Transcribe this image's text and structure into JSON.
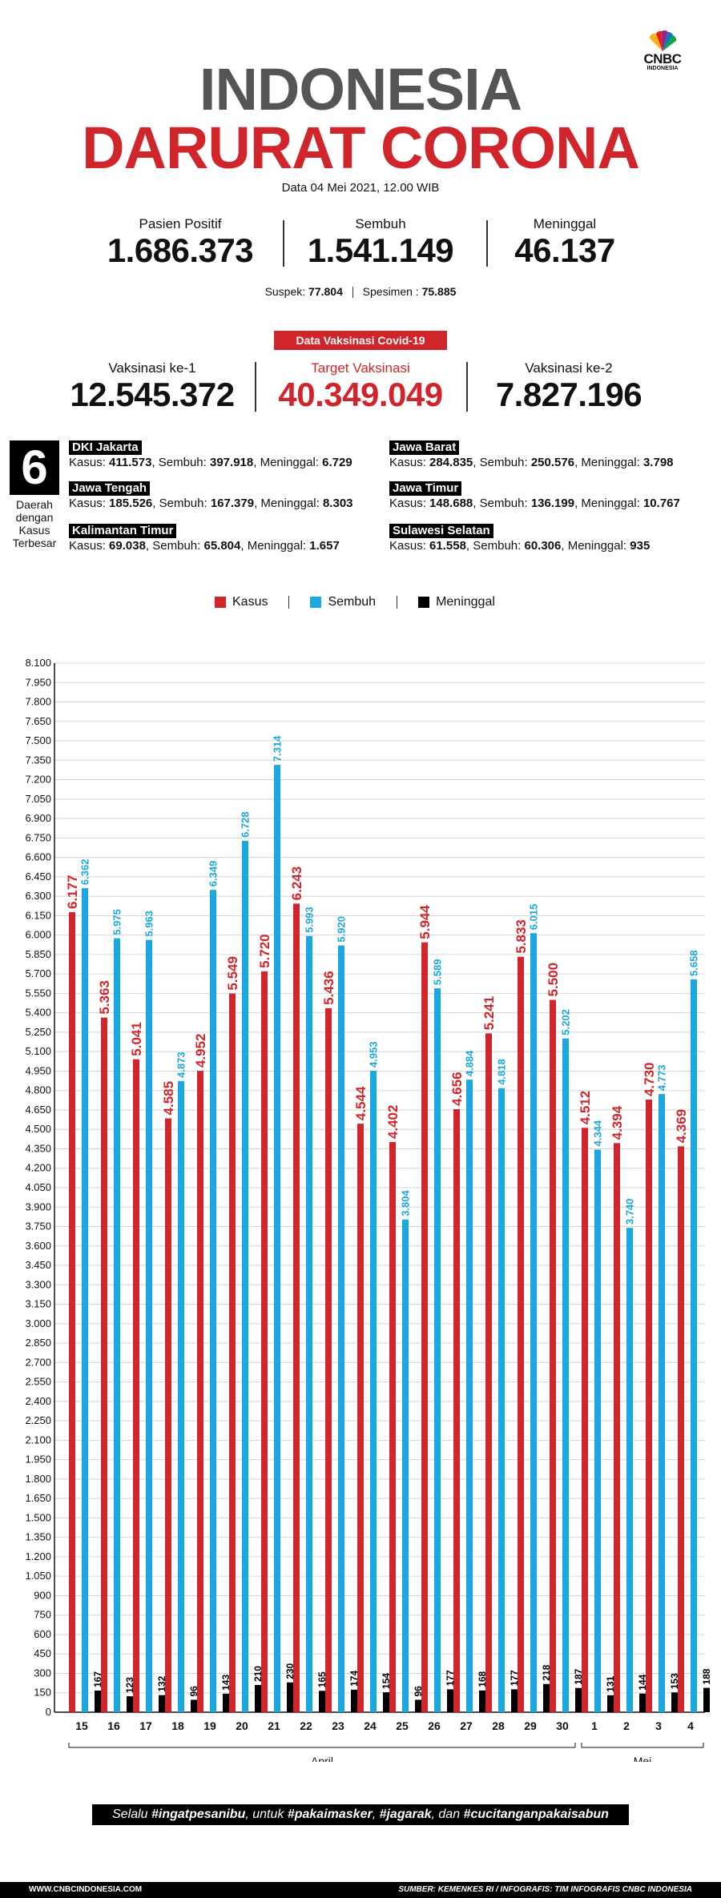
{
  "brand": {
    "name": "CNBC",
    "sub": "INDONESIA"
  },
  "title": {
    "line1": "INDONESIA",
    "line2": "DARURAT CORONA"
  },
  "date": "Data 04 Mei 2021, 12.00 WIB",
  "stats": [
    {
      "label": "Pasien Positif",
      "value": "1.686.373"
    },
    {
      "label": "Sembuh",
      "value": "1.541.149"
    },
    {
      "label": "Meninggal",
      "value": "46.137"
    }
  ],
  "suspek": {
    "label": "Suspek:",
    "value": "77.804"
  },
  "spesimen": {
    "label": "Spesimen :",
    "value": "75.885"
  },
  "vaksinasi": {
    "badge": "Data Vaksinasi Covid-19",
    "items": [
      {
        "label": "Vaksinasi ke-1",
        "value": "12.545.372"
      },
      {
        "label": "Target Vaksinasi",
        "value": "40.349.049"
      },
      {
        "label": "Vaksinasi ke-2",
        "value": "7.827.196"
      }
    ]
  },
  "regions": {
    "count": "6",
    "caption": [
      "Daerah",
      "dengan",
      "Kasus",
      "Terbesar"
    ],
    "labels": {
      "kasus": "Kasus:",
      "sembuh": "Sembuh:",
      "meninggal": "Meninggal:"
    },
    "items": [
      {
        "name": "DKI Jakarta",
        "kasus": "411.573",
        "sembuh": "397.918",
        "meninggal": "6.729"
      },
      {
        "name": "Jawa Barat",
        "kasus": "284.835",
        "sembuh": "250.576",
        "meninggal": "3.798"
      },
      {
        "name": "Jawa Tengah",
        "kasus": "185.526",
        "sembuh": "167.379",
        "meninggal": "8.303"
      },
      {
        "name": "Jawa Timur",
        "kasus": "148.688",
        "sembuh": "136.199",
        "meninggal": "10.767"
      },
      {
        "name": "Kalimantan Timur",
        "kasus": "69.038",
        "sembuh": "65.804",
        "meninggal": "1.657"
      },
      {
        "name": "Sulawesi Selatan",
        "kasus": "61.558",
        "sembuh": "60.306",
        "meninggal": "935"
      }
    ]
  },
  "colors": {
    "kasus": "#d0252a",
    "sembuh": "#1ba8e0",
    "meninggal": "#000000"
  },
  "chart_data": {
    "type": "bar",
    "title": "",
    "xlabel": "",
    "ylabel": "",
    "ylim": [
      0,
      8100
    ],
    "ytick_step": 150,
    "grid": true,
    "legend": "top-center",
    "categories": [
      "15",
      "16",
      "17",
      "18",
      "19",
      "20",
      "21",
      "22",
      "23",
      "24",
      "25",
      "26",
      "27",
      "28",
      "29",
      "30",
      "1",
      "2",
      "3",
      "4"
    ],
    "groups": [
      {
        "label": "April",
        "from": 0,
        "to": 15
      },
      {
        "label": "Mei",
        "from": 16,
        "to": 19
      }
    ],
    "series": [
      {
        "name": "Kasus",
        "values": [
          6177,
          5363,
          5041,
          4585,
          4952,
          5549,
          5720,
          6243,
          5436,
          4544,
          4402,
          5944,
          4656,
          5241,
          5833,
          5500,
          4512,
          4394,
          4730,
          4369
        ],
        "labels": [
          "6.177",
          "5.363",
          "5.041",
          "4.585",
          "4.952",
          "5.549",
          "5.720",
          "6.243",
          "5.436",
          "4.544",
          "4.402",
          "5.944",
          "4.656",
          "5.241",
          "5.833",
          "5.500",
          "4.512",
          "4.394",
          "4.730",
          "4.369"
        ]
      },
      {
        "name": "Sembuh",
        "values": [
          6362,
          5975,
          5963,
          4873,
          6349,
          6728,
          7314,
          5993,
          5920,
          4953,
          3804,
          5589,
          4884,
          4818,
          6015,
          5202,
          4344,
          3740,
          4773,
          5658
        ],
        "labels": [
          "6.362",
          "5.975",
          "5.963",
          "4.873",
          "6.349",
          "6.728",
          "7.314",
          "5.993",
          "5.920",
          "4.953",
          "3.804",
          "5.589",
          "4.884",
          "4.818",
          "6.015",
          "5.202",
          "4.344",
          "3.740",
          "4.773",
          "5.658"
        ]
      },
      {
        "name": "Meninggal",
        "values": [
          167,
          123,
          132,
          96,
          143,
          210,
          230,
          165,
          174,
          154,
          96,
          177,
          168,
          177,
          218,
          187,
          131,
          144,
          153,
          188
        ],
        "labels": [
          "167",
          "123",
          "132",
          "96",
          "143",
          "210",
          "230",
          "165",
          "174",
          "154",
          "96",
          "177",
          "168",
          "177",
          "218",
          "187",
          "131",
          "144",
          "153",
          "188"
        ]
      }
    ]
  },
  "footer": {
    "pre": "Selalu ",
    "tag1": "#ingatpesanibu",
    "mid1": ", untuk ",
    "tag2": "#pakaimasker",
    "sep1": ", ",
    "tag3": "#jagarak",
    "mid2": ", dan ",
    "tag4": "#cucitanganpakaisabun"
  },
  "bottom": {
    "website": "WWW.CNBCINDONESIA.COM",
    "source": "SUMBER: KEMENKES RI / INFOGRAFIS: TIM INFOGRAFIS CNBC INDONESIA"
  }
}
